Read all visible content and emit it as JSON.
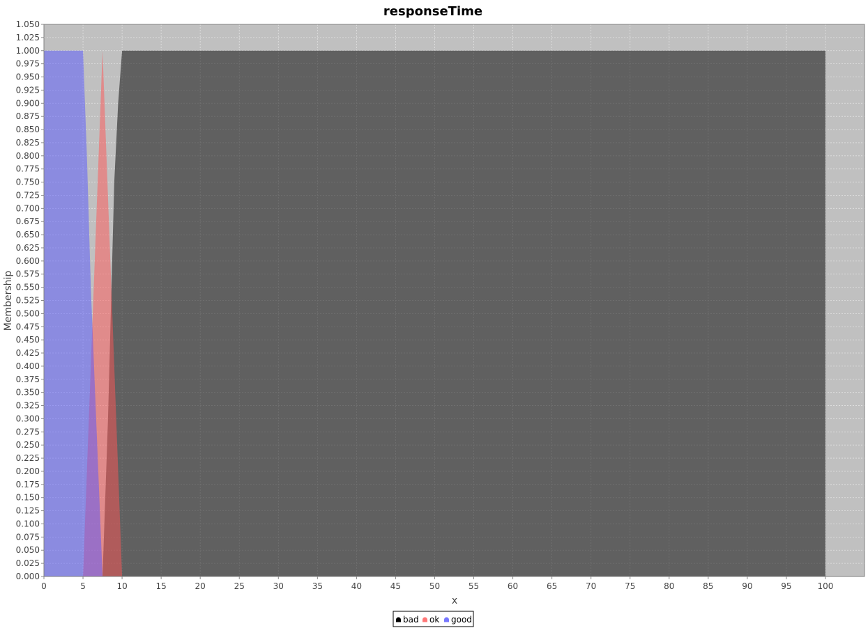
{
  "colors": {
    "background": "#ffffff",
    "plot_background": "#c0c0c0",
    "gridline": "#e2e2e2",
    "bad": "#000000",
    "ok": "#ff5555",
    "good": "#5555ff"
  },
  "chart_data": {
    "type": "area",
    "title": "responseTime",
    "xlabel": "x",
    "ylabel": "Membership",
    "xlim": [
      0,
      105
    ],
    "ylim": [
      0,
      1.05
    ],
    "xticks": [
      0,
      5,
      10,
      15,
      20,
      25,
      30,
      35,
      40,
      45,
      50,
      55,
      60,
      65,
      70,
      75,
      80,
      85,
      90,
      95,
      100
    ],
    "ytick_step": 0.025,
    "grid": true,
    "legend_position": "bottom-center",
    "series": [
      {
        "name": "bad",
        "color": "#000000",
        "opacity": 0.5,
        "x": [
          0,
          7.5,
          8.2,
          9.0,
          9.5,
          10.0,
          100,
          100
        ],
        "y": [
          0,
          0,
          0.3,
          0.75,
          0.9,
          1.0,
          1.0,
          0
        ]
      },
      {
        "name": "ok",
        "color": "#ff5555",
        "opacity": 0.5,
        "x": [
          0,
          5.0,
          7.5,
          10.0,
          105
        ],
        "y": [
          0,
          0,
          1.0,
          0,
          0
        ]
      },
      {
        "name": "good",
        "color": "#5555ff",
        "opacity": 0.5,
        "x": [
          0,
          5.0,
          5.5,
          6.0,
          7.5,
          105
        ],
        "y": [
          1.0,
          1.0,
          0.8,
          0.55,
          0,
          0
        ]
      }
    ]
  }
}
